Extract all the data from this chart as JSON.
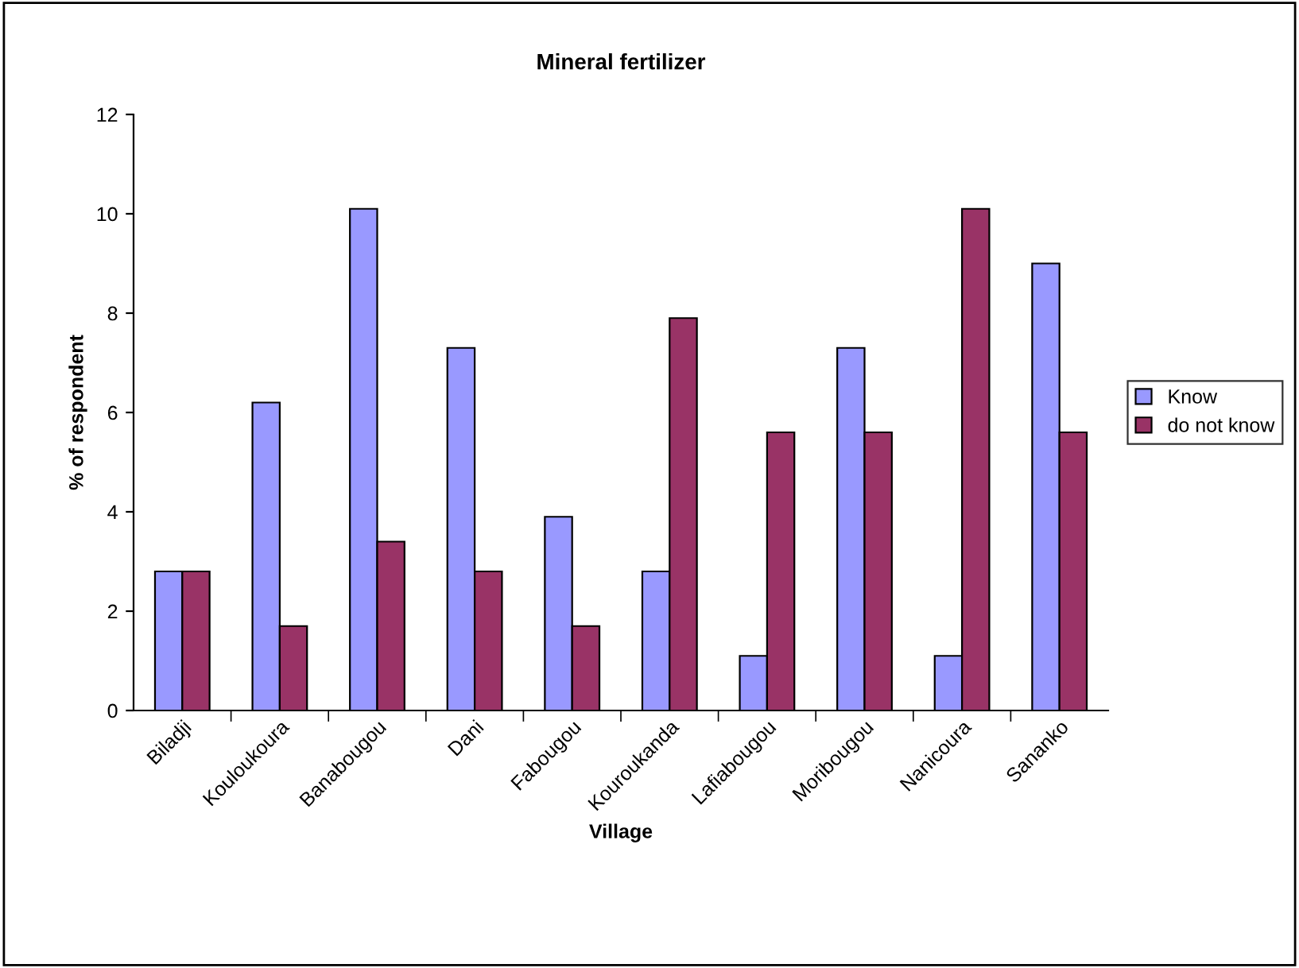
{
  "chart_data": {
    "type": "bar",
    "title": "Mineral fertilizer",
    "xlabel": "Village",
    "ylabel": "% of respondent",
    "categories": [
      "Biladji",
      "Kouloukoura",
      "Banabougou",
      "Dani",
      "Fabougou",
      "Kouroukanda",
      "Lafiabougou",
      "Moribougou",
      "Nanicoura",
      "Sananko"
    ],
    "series": [
      {
        "name": "Know",
        "color": "#9999ff",
        "values": [
          2.8,
          6.2,
          10.1,
          7.3,
          3.9,
          2.8,
          1.1,
          7.3,
          1.1,
          9.0
        ]
      },
      {
        "name": "do not know",
        "color": "#993366",
        "values": [
          2.8,
          1.7,
          3.4,
          2.8,
          1.7,
          7.9,
          5.6,
          5.6,
          10.1,
          5.6
        ]
      }
    ],
    "ylim": [
      0,
      12
    ],
    "yticks": [
      0,
      2,
      4,
      6,
      8,
      10,
      12
    ],
    "grid": false,
    "legend": "right"
  }
}
